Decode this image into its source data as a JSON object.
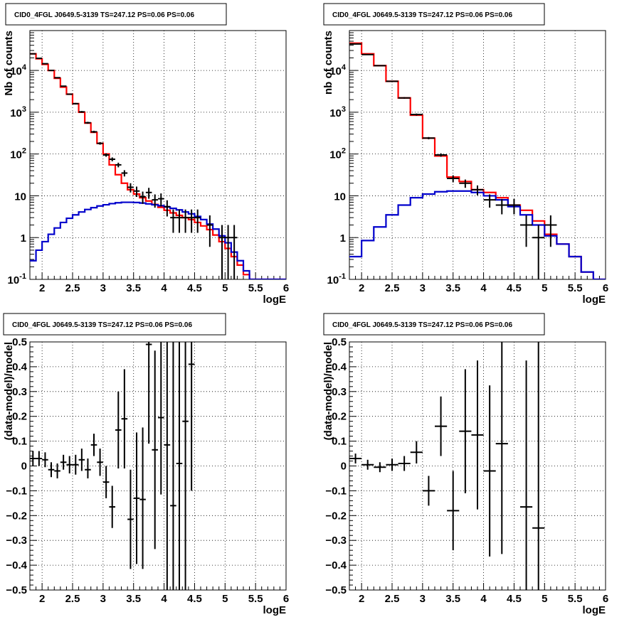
{
  "chart_data": [
    {
      "type": "histogram-log",
      "title": "CID0_4FGL J0649.5-3139 TS=247.12 PS=0.06 PS=0.06",
      "xlabel": "logE",
      "ylabel": "Nb of counts",
      "xlim": [
        1.8,
        6.0
      ],
      "ylim": [
        0.1,
        90000
      ],
      "yscale": "log",
      "xticks": [
        "2",
        "2.5",
        "3",
        "3.5",
        "4",
        "4.5",
        "5",
        "5.5",
        "6"
      ],
      "yticks": [
        "10^-1",
        "1",
        "10",
        "10^2",
        "10^3",
        "10^4"
      ],
      "grid": true,
      "bin_edges": [
        1.8,
        1.9,
        2.0,
        2.1,
        2.2,
        2.3,
        2.4,
        2.5,
        2.6,
        2.7,
        2.8,
        2.9,
        3.0,
        3.1,
        3.2,
        3.3,
        3.4,
        3.5,
        3.6,
        3.7,
        3.8,
        3.9,
        4.0,
        4.1,
        4.2,
        4.3,
        4.4,
        4.5,
        4.6,
        4.7,
        4.8,
        4.9,
        5.0,
        5.1,
        5.2,
        5.3,
        5.4,
        5.5,
        5.6,
        5.7,
        5.8,
        5.9,
        6.0
      ],
      "series": [
        {
          "color": "#ff0000",
          "style": "step",
          "values": [
            25000,
            19000,
            14000,
            10000,
            6500,
            4000,
            2700,
            1600,
            1000,
            550,
            330,
            180,
            100,
            55,
            32,
            20,
            14,
            11,
            9,
            7.5,
            6.2,
            5.3,
            4.5,
            3.9,
            3.4,
            3.0,
            2.7,
            2.3,
            1.9,
            1.55,
            1.15,
            0.8,
            0.55,
            0.35,
            0.22,
            0.13,
            0.1,
            0.1,
            0.1,
            0.1,
            0.1,
            0.1
          ]
        },
        {
          "color": "#0000cc",
          "style": "step",
          "values": [
            0.28,
            0.5,
            0.8,
            1.2,
            1.7,
            2.3,
            2.9,
            3.5,
            4.1,
            4.7,
            5.2,
            5.7,
            6.1,
            6.5,
            6.8,
            7.0,
            7.0,
            6.9,
            6.7,
            6.4,
            6.1,
            5.8,
            5.4,
            5.0,
            4.6,
            4.1,
            3.7,
            3.2,
            2.7,
            2.1,
            1.6,
            1.1,
            0.75,
            0.45,
            0.28,
            0.16,
            0.1,
            0.1,
            0.1,
            0.1,
            0.1,
            0.1
          ]
        }
      ],
      "points": [
        {
          "x": 1.85,
          "y": 25000,
          "ylo": 24700,
          "yhi": 25300
        },
        {
          "x": 1.95,
          "y": 19500,
          "ylo": 19200,
          "yhi": 19800
        },
        {
          "x": 2.05,
          "y": 14500,
          "ylo": 14250,
          "yhi": 14750
        },
        {
          "x": 2.15,
          "y": 10000,
          "ylo": 9800,
          "yhi": 10200
        },
        {
          "x": 2.25,
          "y": 6700,
          "ylo": 6550,
          "yhi": 6850
        },
        {
          "x": 2.35,
          "y": 4200,
          "ylo": 4080,
          "yhi": 4320
        },
        {
          "x": 2.45,
          "y": 2700,
          "ylo": 2600,
          "yhi": 2800
        },
        {
          "x": 2.55,
          "y": 1600,
          "ylo": 1530,
          "yhi": 1670
        },
        {
          "x": 2.65,
          "y": 1020,
          "ylo": 970,
          "yhi": 1070
        },
        {
          "x": 2.75,
          "y": 560,
          "ylo": 530,
          "yhi": 590
        },
        {
          "x": 2.85,
          "y": 340,
          "ylo": 320,
          "yhi": 360
        },
        {
          "x": 2.95,
          "y": 180,
          "ylo": 167,
          "yhi": 193
        },
        {
          "x": 3.05,
          "y": 95,
          "ylo": 86,
          "yhi": 104
        },
        {
          "x": 3.15,
          "y": 75,
          "ylo": 67,
          "yhi": 83
        },
        {
          "x": 3.25,
          "y": 55,
          "ylo": 48,
          "yhi": 62
        },
        {
          "x": 3.35,
          "y": 35,
          "ylo": 29,
          "yhi": 41
        },
        {
          "x": 3.45,
          "y": 16,
          "ylo": 12,
          "yhi": 20
        },
        {
          "x": 3.55,
          "y": 13,
          "ylo": 9.4,
          "yhi": 16.6
        },
        {
          "x": 3.65,
          "y": 9.5,
          "ylo": 6.4,
          "yhi": 12.6
        },
        {
          "x": 3.75,
          "y": 12,
          "ylo": 8.5,
          "yhi": 15.5
        },
        {
          "x": 3.85,
          "y": 8,
          "ylo": 5.2,
          "yhi": 10.8
        },
        {
          "x": 3.95,
          "y": 8.5,
          "ylo": 5.6,
          "yhi": 11.4
        },
        {
          "x": 4.05,
          "y": 5.5,
          "ylo": 3.2,
          "yhi": 7.8
        },
        {
          "x": 4.15,
          "y": 3,
          "ylo": 1.3,
          "yhi": 4.7
        },
        {
          "x": 4.25,
          "y": 3,
          "ylo": 1.3,
          "yhi": 4.7
        },
        {
          "x": 4.35,
          "y": 3,
          "ylo": 1.3,
          "yhi": 4.7
        },
        {
          "x": 4.45,
          "y": 3,
          "ylo": 1.3,
          "yhi": 4.7
        },
        {
          "x": 4.55,
          "y": 3,
          "ylo": 1.3,
          "yhi": 4.7
        },
        {
          "x": 4.75,
          "y": 2,
          "ylo": 0.6,
          "yhi": 3.4
        },
        {
          "x": 4.95,
          "y": 1,
          "ylo": 0.1,
          "yhi": 2.0
        },
        {
          "x": 5.05,
          "y": 1,
          "ylo": 0.1,
          "yhi": 2.0
        },
        {
          "x": 5.15,
          "y": 1,
          "ylo": 0.1,
          "yhi": 2.0
        }
      ],
      "xerr": 0.05
    },
    {
      "type": "histogram-log",
      "title": "CID0_4FGL J0649.5-3139 TS=247.12 PS=0.06 PS=0.06",
      "xlabel": "logE",
      "ylabel": "nb of counts",
      "xlim": [
        1.8,
        6.0
      ],
      "ylim": [
        0.1,
        90000
      ],
      "yscale": "log",
      "xticks": [
        "2",
        "2.5",
        "3",
        "3.5",
        "4",
        "4.5",
        "5",
        "5.5",
        "6"
      ],
      "yticks": [
        "10^-1",
        "1",
        "10",
        "10^2",
        "10^3",
        "10^4"
      ],
      "grid": true,
      "bin_edges": [
        1.8,
        2.0,
        2.2,
        2.4,
        2.6,
        2.8,
        3.0,
        3.2,
        3.4,
        3.6,
        3.8,
        4.0,
        4.2,
        4.4,
        4.6,
        4.8,
        5.0,
        5.2,
        5.4,
        5.6,
        5.8,
        6.0
      ],
      "series": [
        {
          "color": "#ff0000",
          "style": "step",
          "values": [
            45000,
            25000,
            13000,
            5500,
            2200,
            850,
            240,
            90,
            28,
            22,
            14,
            12,
            9,
            6,
            4.5,
            2.5,
            1.2,
            0.7,
            0.35,
            0.15,
            0.1
          ]
        },
        {
          "color": "#0000cc",
          "style": "step",
          "values": [
            0.35,
            0.85,
            1.8,
            3.5,
            6,
            9,
            11,
            12.5,
            13,
            13,
            12,
            10,
            8,
            5.5,
            3.5,
            2,
            1.1,
            0.7,
            0.35,
            0.15,
            0.1
          ]
        }
      ],
      "points": [
        {
          "x": 1.9,
          "y": 43000,
          "ylo": 42600,
          "yhi": 43400
        },
        {
          "x": 2.1,
          "y": 24000,
          "ylo": 23700,
          "yhi": 24300
        },
        {
          "x": 2.3,
          "y": 13000,
          "ylo": 12800,
          "yhi": 13200
        },
        {
          "x": 2.5,
          "y": 5500,
          "ylo": 5350,
          "yhi": 5650
        },
        {
          "x": 2.7,
          "y": 2200,
          "ylo": 2110,
          "yhi": 2290
        },
        {
          "x": 2.9,
          "y": 880,
          "ylo": 830,
          "yhi": 930
        },
        {
          "x": 3.1,
          "y": 240,
          "ylo": 225,
          "yhi": 255
        },
        {
          "x": 3.3,
          "y": 95,
          "ylo": 86,
          "yhi": 104
        },
        {
          "x": 3.5,
          "y": 26,
          "ylo": 21,
          "yhi": 31
        },
        {
          "x": 3.7,
          "y": 20,
          "ylo": 15.5,
          "yhi": 24.5
        },
        {
          "x": 3.9,
          "y": 14,
          "ylo": 10.3,
          "yhi": 17.7
        },
        {
          "x": 4.1,
          "y": 8,
          "ylo": 5.2,
          "yhi": 10.8
        },
        {
          "x": 4.3,
          "y": 6,
          "ylo": 3.6,
          "yhi": 8.4
        },
        {
          "x": 4.5,
          "y": 6,
          "ylo": 3.6,
          "yhi": 8.4
        },
        {
          "x": 4.7,
          "y": 2,
          "ylo": 0.6,
          "yhi": 3.4
        },
        {
          "x": 4.9,
          "y": 1,
          "ylo": 0.1,
          "yhi": 2.0
        },
        {
          "x": 5.1,
          "y": 2,
          "ylo": 0.6,
          "yhi": 3.4
        }
      ],
      "xerr": 0.1
    },
    {
      "type": "residuals",
      "title": "CID0_4FGL J0649.5-3139 TS=247.12 PS=0.06 PS=0.06",
      "xlabel": "logE",
      "ylabel": "(data-model)/model",
      "xlim": [
        1.8,
        6.0
      ],
      "ylim": [
        -0.5,
        0.5
      ],
      "xticks": [
        "2",
        "2.5",
        "3",
        "3.5",
        "4",
        "4.5",
        "5",
        "5.5",
        "6"
      ],
      "yticks": [
        "-0.5",
        "-0.4",
        "-0.3",
        "-0.2",
        "-0.1",
        "0",
        "0.1",
        "0.2",
        "0.3",
        "0.4",
        "0.5"
      ],
      "grid": true,
      "xerr": 0.05,
      "points": [
        {
          "x": 1.85,
          "y": 0.03,
          "ylo": 0.0,
          "yhi": 0.06
        },
        {
          "x": 1.95,
          "y": 0.03,
          "ylo": 0.0,
          "yhi": 0.06
        },
        {
          "x": 2.05,
          "y": 0.025,
          "ylo": -0.005,
          "yhi": 0.055
        },
        {
          "x": 2.15,
          "y": -0.015,
          "ylo": -0.045,
          "yhi": 0.015
        },
        {
          "x": 2.25,
          "y": -0.02,
          "ylo": -0.05,
          "yhi": 0.01
        },
        {
          "x": 2.35,
          "y": 0.015,
          "ylo": -0.015,
          "yhi": 0.045
        },
        {
          "x": 2.45,
          "y": 0.005,
          "ylo": -0.03,
          "yhi": 0.04
        },
        {
          "x": 2.55,
          "y": 0.005,
          "ylo": -0.035,
          "yhi": 0.045
        },
        {
          "x": 2.65,
          "y": 0.025,
          "ylo": -0.02,
          "yhi": 0.07
        },
        {
          "x": 2.75,
          "y": -0.015,
          "ylo": -0.05,
          "yhi": 0.03
        },
        {
          "x": 2.85,
          "y": 0.085,
          "ylo": 0.04,
          "yhi": 0.13
        },
        {
          "x": 2.95,
          "y": 0.015,
          "ylo": -0.04,
          "yhi": 0.07
        },
        {
          "x": 3.05,
          "y": -0.065,
          "ylo": -0.13,
          "yhi": 0.0
        },
        {
          "x": 3.15,
          "y": -0.165,
          "ylo": -0.25,
          "yhi": -0.08
        },
        {
          "x": 3.25,
          "y": 0.145,
          "ylo": -0.01,
          "yhi": 0.3
        },
        {
          "x": 3.35,
          "y": 0.19,
          "ylo": -0.01,
          "yhi": 0.39
        },
        {
          "x": 3.45,
          "y": -0.215,
          "ylo": -0.415,
          "yhi": -0.015
        },
        {
          "x": 3.55,
          "y": -0.13,
          "ylo": -0.395,
          "yhi": 0.135
        },
        {
          "x": 3.65,
          "y": -0.135,
          "ylo": -0.415,
          "yhi": 0.155
        },
        {
          "x": 3.75,
          "y": 0.49,
          "ylo": 0.09,
          "yhi": 0.5
        },
        {
          "x": 3.85,
          "y": 0.065,
          "ylo": -0.335,
          "yhi": 0.465
        },
        {
          "x": 3.95,
          "y": 0.195,
          "ylo": -0.115,
          "yhi": 0.505
        },
        {
          "x": 4.05,
          "y": 0.085,
          "ylo": -0.5,
          "yhi": 0.5
        },
        {
          "x": 4.15,
          "y": -0.16,
          "ylo": -0.5,
          "yhi": 0.5
        },
        {
          "x": 4.25,
          "y": 0.01,
          "ylo": -0.5,
          "yhi": 0.5
        },
        {
          "x": 4.35,
          "y": 0.18,
          "ylo": -0.5,
          "yhi": 0.5
        },
        {
          "x": 4.45,
          "y": 0.41,
          "ylo": -0.1,
          "yhi": 0.5
        }
      ]
    },
    {
      "type": "residuals",
      "title": "CID0_4FGL J0649.5-3139 TS=247.12 PS=0.06 PS=0.06",
      "xlabel": "logE",
      "ylabel": "(data-model)/model",
      "xlim": [
        1.8,
        6.0
      ],
      "ylim": [
        -0.5,
        0.5
      ],
      "xticks": [
        "2",
        "2.5",
        "3",
        "3.5",
        "4",
        "4.5",
        "5",
        "5.5",
        "6"
      ],
      "yticks": [
        "-0.5",
        "-0.4",
        "-0.3",
        "-0.2",
        "-0.1",
        "0",
        "0.1",
        "0.2",
        "0.3",
        "0.4",
        "0.5"
      ],
      "grid": true,
      "xerr": 0.1,
      "points": [
        {
          "x": 1.9,
          "y": 0.03,
          "ylo": 0.01,
          "yhi": 0.05
        },
        {
          "x": 2.1,
          "y": 0.005,
          "ylo": -0.015,
          "yhi": 0.025
        },
        {
          "x": 2.3,
          "y": -0.005,
          "ylo": -0.025,
          "yhi": 0.015
        },
        {
          "x": 2.5,
          "y": 0.005,
          "ylo": -0.02,
          "yhi": 0.03
        },
        {
          "x": 2.7,
          "y": 0.01,
          "ylo": -0.02,
          "yhi": 0.04
        },
        {
          "x": 2.9,
          "y": 0.055,
          "ylo": 0.01,
          "yhi": 0.1
        },
        {
          "x": 3.1,
          "y": -0.1,
          "ylo": -0.16,
          "yhi": -0.04
        },
        {
          "x": 3.3,
          "y": 0.16,
          "ylo": 0.04,
          "yhi": 0.28
        },
        {
          "x": 3.5,
          "y": -0.18,
          "ylo": -0.34,
          "yhi": -0.02
        },
        {
          "x": 3.7,
          "y": 0.14,
          "ylo": -0.11,
          "yhi": 0.39
        },
        {
          "x": 3.9,
          "y": 0.125,
          "ylo": -0.175,
          "yhi": 0.425
        },
        {
          "x": 4.1,
          "y": -0.02,
          "ylo": -0.365,
          "yhi": 0.325
        },
        {
          "x": 4.3,
          "y": 0.09,
          "ylo": -0.355,
          "yhi": 0.5
        },
        {
          "x": 4.7,
          "y": -0.165,
          "ylo": -0.5,
          "yhi": 0.425
        },
        {
          "x": 4.9,
          "y": -0.25,
          "ylo": -0.5,
          "yhi": 0.5
        }
      ]
    }
  ]
}
